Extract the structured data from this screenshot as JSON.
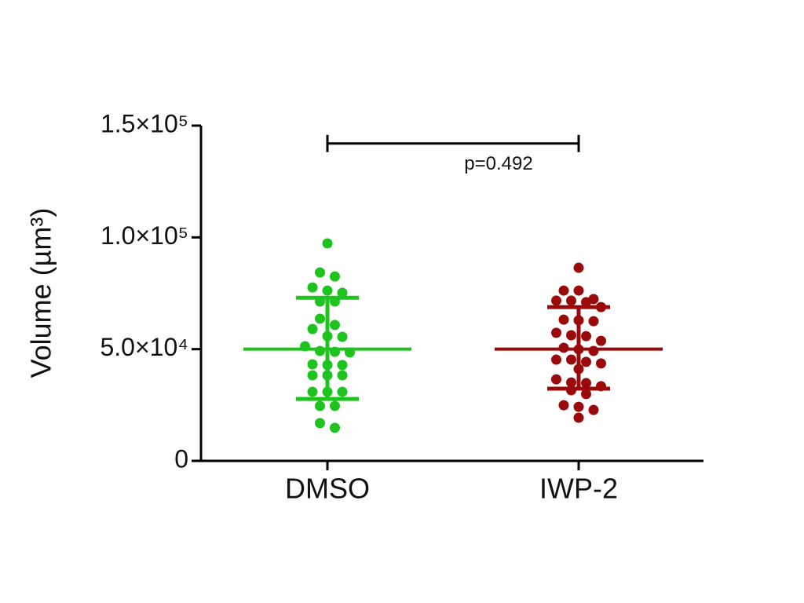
{
  "chart_data": {
    "type": "scatter",
    "y_label": "Volume (µm³)",
    "categories": [
      "DMSO",
      "IWP-2"
    ],
    "ylim": [
      0,
      150000
    ],
    "yticks": [
      0,
      {
        "value": 50000,
        "label": "5.0×10⁴"
      },
      {
        "value": 100000,
        "label": "1.0×10⁵"
      },
      {
        "value": 150000,
        "label": "1.5×10⁵"
      }
    ],
    "series": [
      {
        "name": "DMSO",
        "color": "#1ec31e",
        "values": [
          97300,
          84300,
          82500,
          77600,
          76200,
          75200,
          71300,
          71300,
          63600,
          60800,
          59000,
          55800,
          55500,
          51300,
          48800,
          49200,
          48500,
          42900,
          42900,
          43200,
          38300,
          38300,
          38300,
          30900,
          30900,
          30900,
          24600,
          24600,
          16900,
          14800
        ],
        "mean": 50000,
        "sd_upper": 73000,
        "sd_lower": 27700
      },
      {
        "name": "IWP-2",
        "color": "#9b0a0a",
        "values": [
          86400,
          76200,
          76200,
          72400,
          71000,
          71700,
          71700,
          68800,
          63200,
          62900,
          62500,
          57300,
          56200,
          55800,
          53700,
          49200,
          49900,
          50600,
          45300,
          44300,
          43600,
          45300,
          41100,
          36500,
          34800,
          35100,
          33400,
          31600,
          29900,
          24900,
          24200,
          22800,
          19300
        ],
        "mean": 50000,
        "sd_upper": 68800,
        "sd_lower": 32300
      }
    ],
    "annotation": {
      "text": "p=0.492",
      "y": 142000
    }
  }
}
